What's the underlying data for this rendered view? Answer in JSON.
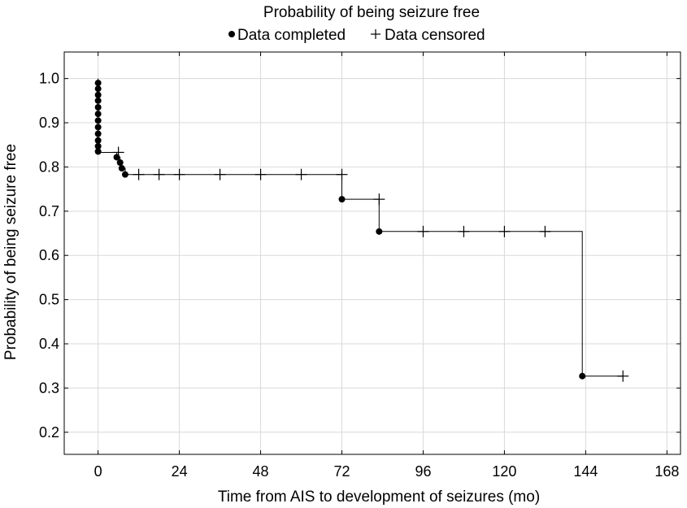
{
  "chart_data": {
    "type": "line",
    "title": "Probability of being seizure free",
    "xlabel": "Time from AIS to development of seizures (mo)",
    "ylabel": "Probability of being seizure free",
    "xlim": [
      -10,
      172
    ],
    "ylim": [
      0.15,
      1.06
    ],
    "xticks": [
      0,
      24,
      48,
      72,
      96,
      120,
      144,
      168
    ],
    "yticks": [
      0.2,
      0.3,
      0.4,
      0.5,
      0.6,
      0.7,
      0.8,
      0.9,
      1.0
    ],
    "xtick_labels": [
      "0",
      "24",
      "48",
      "72",
      "96",
      "120",
      "144",
      "168"
    ],
    "ytick_labels": [
      "0.2",
      "0.3",
      "0.4",
      "0.5",
      "0.6",
      "0.7",
      "0.8",
      "0.9",
      "1.0"
    ],
    "grid": true,
    "legend": {
      "position": "top",
      "entries": [
        {
          "marker": "dot",
          "label": "Data completed"
        },
        {
          "marker": "plus",
          "label": "Data censored"
        }
      ]
    },
    "series": [
      {
        "step": [
          [
            0,
            1.0
          ],
          [
            0,
            0.833
          ],
          [
            5.5,
            0.833
          ],
          [
            5.5,
            0.822
          ],
          [
            6.5,
            0.822
          ],
          [
            6.5,
            0.81
          ],
          [
            7,
            0.81
          ],
          [
            7,
            0.797
          ],
          [
            8,
            0.797
          ],
          [
            8,
            0.783
          ],
          [
            72,
            0.783
          ],
          [
            72,
            0.727
          ],
          [
            83,
            0.727
          ],
          [
            83,
            0.654
          ],
          [
            143,
            0.654
          ],
          [
            143,
            0.327
          ],
          [
            155,
            0.327
          ]
        ],
        "completed": [
          [
            0,
            0.99
          ],
          [
            0,
            0.977
          ],
          [
            0,
            0.963
          ],
          [
            0,
            0.95
          ],
          [
            0,
            0.935
          ],
          [
            0,
            0.92
          ],
          [
            0,
            0.905
          ],
          [
            0,
            0.89
          ],
          [
            0,
            0.875
          ],
          [
            0,
            0.86
          ],
          [
            0,
            0.847
          ],
          [
            0,
            0.835
          ],
          [
            5.5,
            0.822
          ],
          [
            6.5,
            0.81
          ],
          [
            7,
            0.797
          ],
          [
            8,
            0.783
          ],
          [
            72,
            0.727
          ],
          [
            83,
            0.654
          ],
          [
            143,
            0.327
          ]
        ],
        "censored": [
          [
            6,
            0.833
          ],
          [
            12,
            0.783
          ],
          [
            18,
            0.783
          ],
          [
            24,
            0.783
          ],
          [
            36,
            0.783
          ],
          [
            48,
            0.783
          ],
          [
            60,
            0.783
          ],
          [
            72,
            0.783
          ],
          [
            83,
            0.727
          ],
          [
            96,
            0.654
          ],
          [
            108,
            0.654
          ],
          [
            120,
            0.654
          ],
          [
            132,
            0.654
          ],
          [
            155,
            0.327
          ]
        ]
      }
    ]
  }
}
